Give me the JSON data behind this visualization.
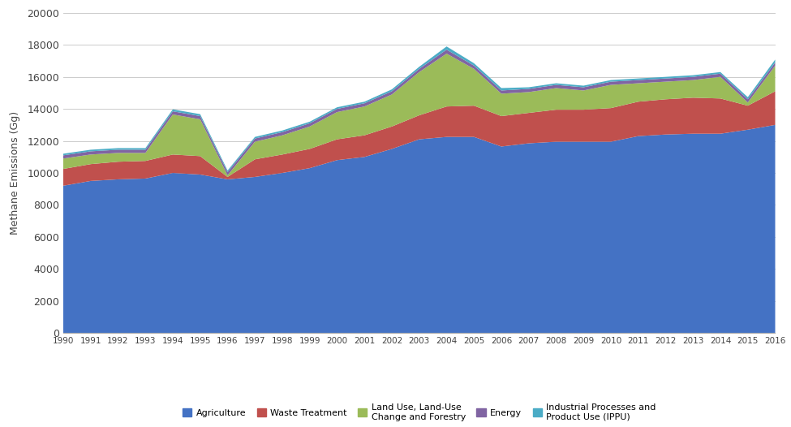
{
  "years": [
    1990,
    1991,
    1992,
    1993,
    1994,
    1995,
    1996,
    1997,
    1998,
    1999,
    2000,
    2001,
    2002,
    2003,
    2004,
    2005,
    2006,
    2007,
    2008,
    2009,
    2010,
    2011,
    2012,
    2013,
    2014,
    2015,
    2016
  ],
  "agriculture": [
    9200,
    9500,
    9600,
    9650,
    10000,
    9900,
    9600,
    9750,
    10000,
    10300,
    10800,
    11000,
    11500,
    12100,
    12250,
    12250,
    11650,
    11850,
    11950,
    11950,
    11950,
    12300,
    12400,
    12450,
    12450,
    12700,
    13000
  ],
  "waste_treatment": [
    1050,
    1050,
    1100,
    1100,
    1150,
    1150,
    150,
    1100,
    1150,
    1200,
    1300,
    1350,
    1400,
    1500,
    1900,
    1950,
    1900,
    1900,
    2000,
    2000,
    2100,
    2150,
    2200,
    2250,
    2200,
    1500,
    2100
  ],
  "land_use": [
    650,
    600,
    550,
    500,
    2500,
    2300,
    100,
    1100,
    1200,
    1400,
    1700,
    1800,
    2000,
    2700,
    3300,
    2300,
    1400,
    1300,
    1350,
    1200,
    1450,
    1150,
    1100,
    1100,
    1350,
    200,
    1600
  ],
  "energy": [
    200,
    200,
    200,
    200,
    200,
    200,
    200,
    200,
    200,
    200,
    200,
    200,
    200,
    200,
    250,
    200,
    200,
    200,
    200,
    200,
    200,
    200,
    200,
    200,
    200,
    200,
    200
  ],
  "ippu": [
    100,
    100,
    100,
    100,
    120,
    120,
    100,
    100,
    100,
    100,
    100,
    100,
    120,
    130,
    200,
    150,
    150,
    100,
    100,
    100,
    100,
    100,
    100,
    100,
    100,
    130,
    180
  ],
  "colors": {
    "agriculture": "#4472C4",
    "waste_treatment": "#C0504D",
    "land_use": "#9BBB59",
    "energy": "#8064A2",
    "ippu": "#4BACC6"
  },
  "ylabel": "Methane Emissions (Gg)",
  "ylim": [
    0,
    20000
  ],
  "yticks": [
    0,
    2000,
    4000,
    6000,
    8000,
    10000,
    12000,
    14000,
    16000,
    18000,
    20000
  ],
  "legend_labels": [
    "Agriculture",
    "Waste Treatment",
    "Land Use, Land-Use\nChange and Forestry",
    "Energy",
    "Industrial Processes and\nProduct Use (IPPU)"
  ],
  "background_color": "#ffffff",
  "grid_color": "#cccccc"
}
